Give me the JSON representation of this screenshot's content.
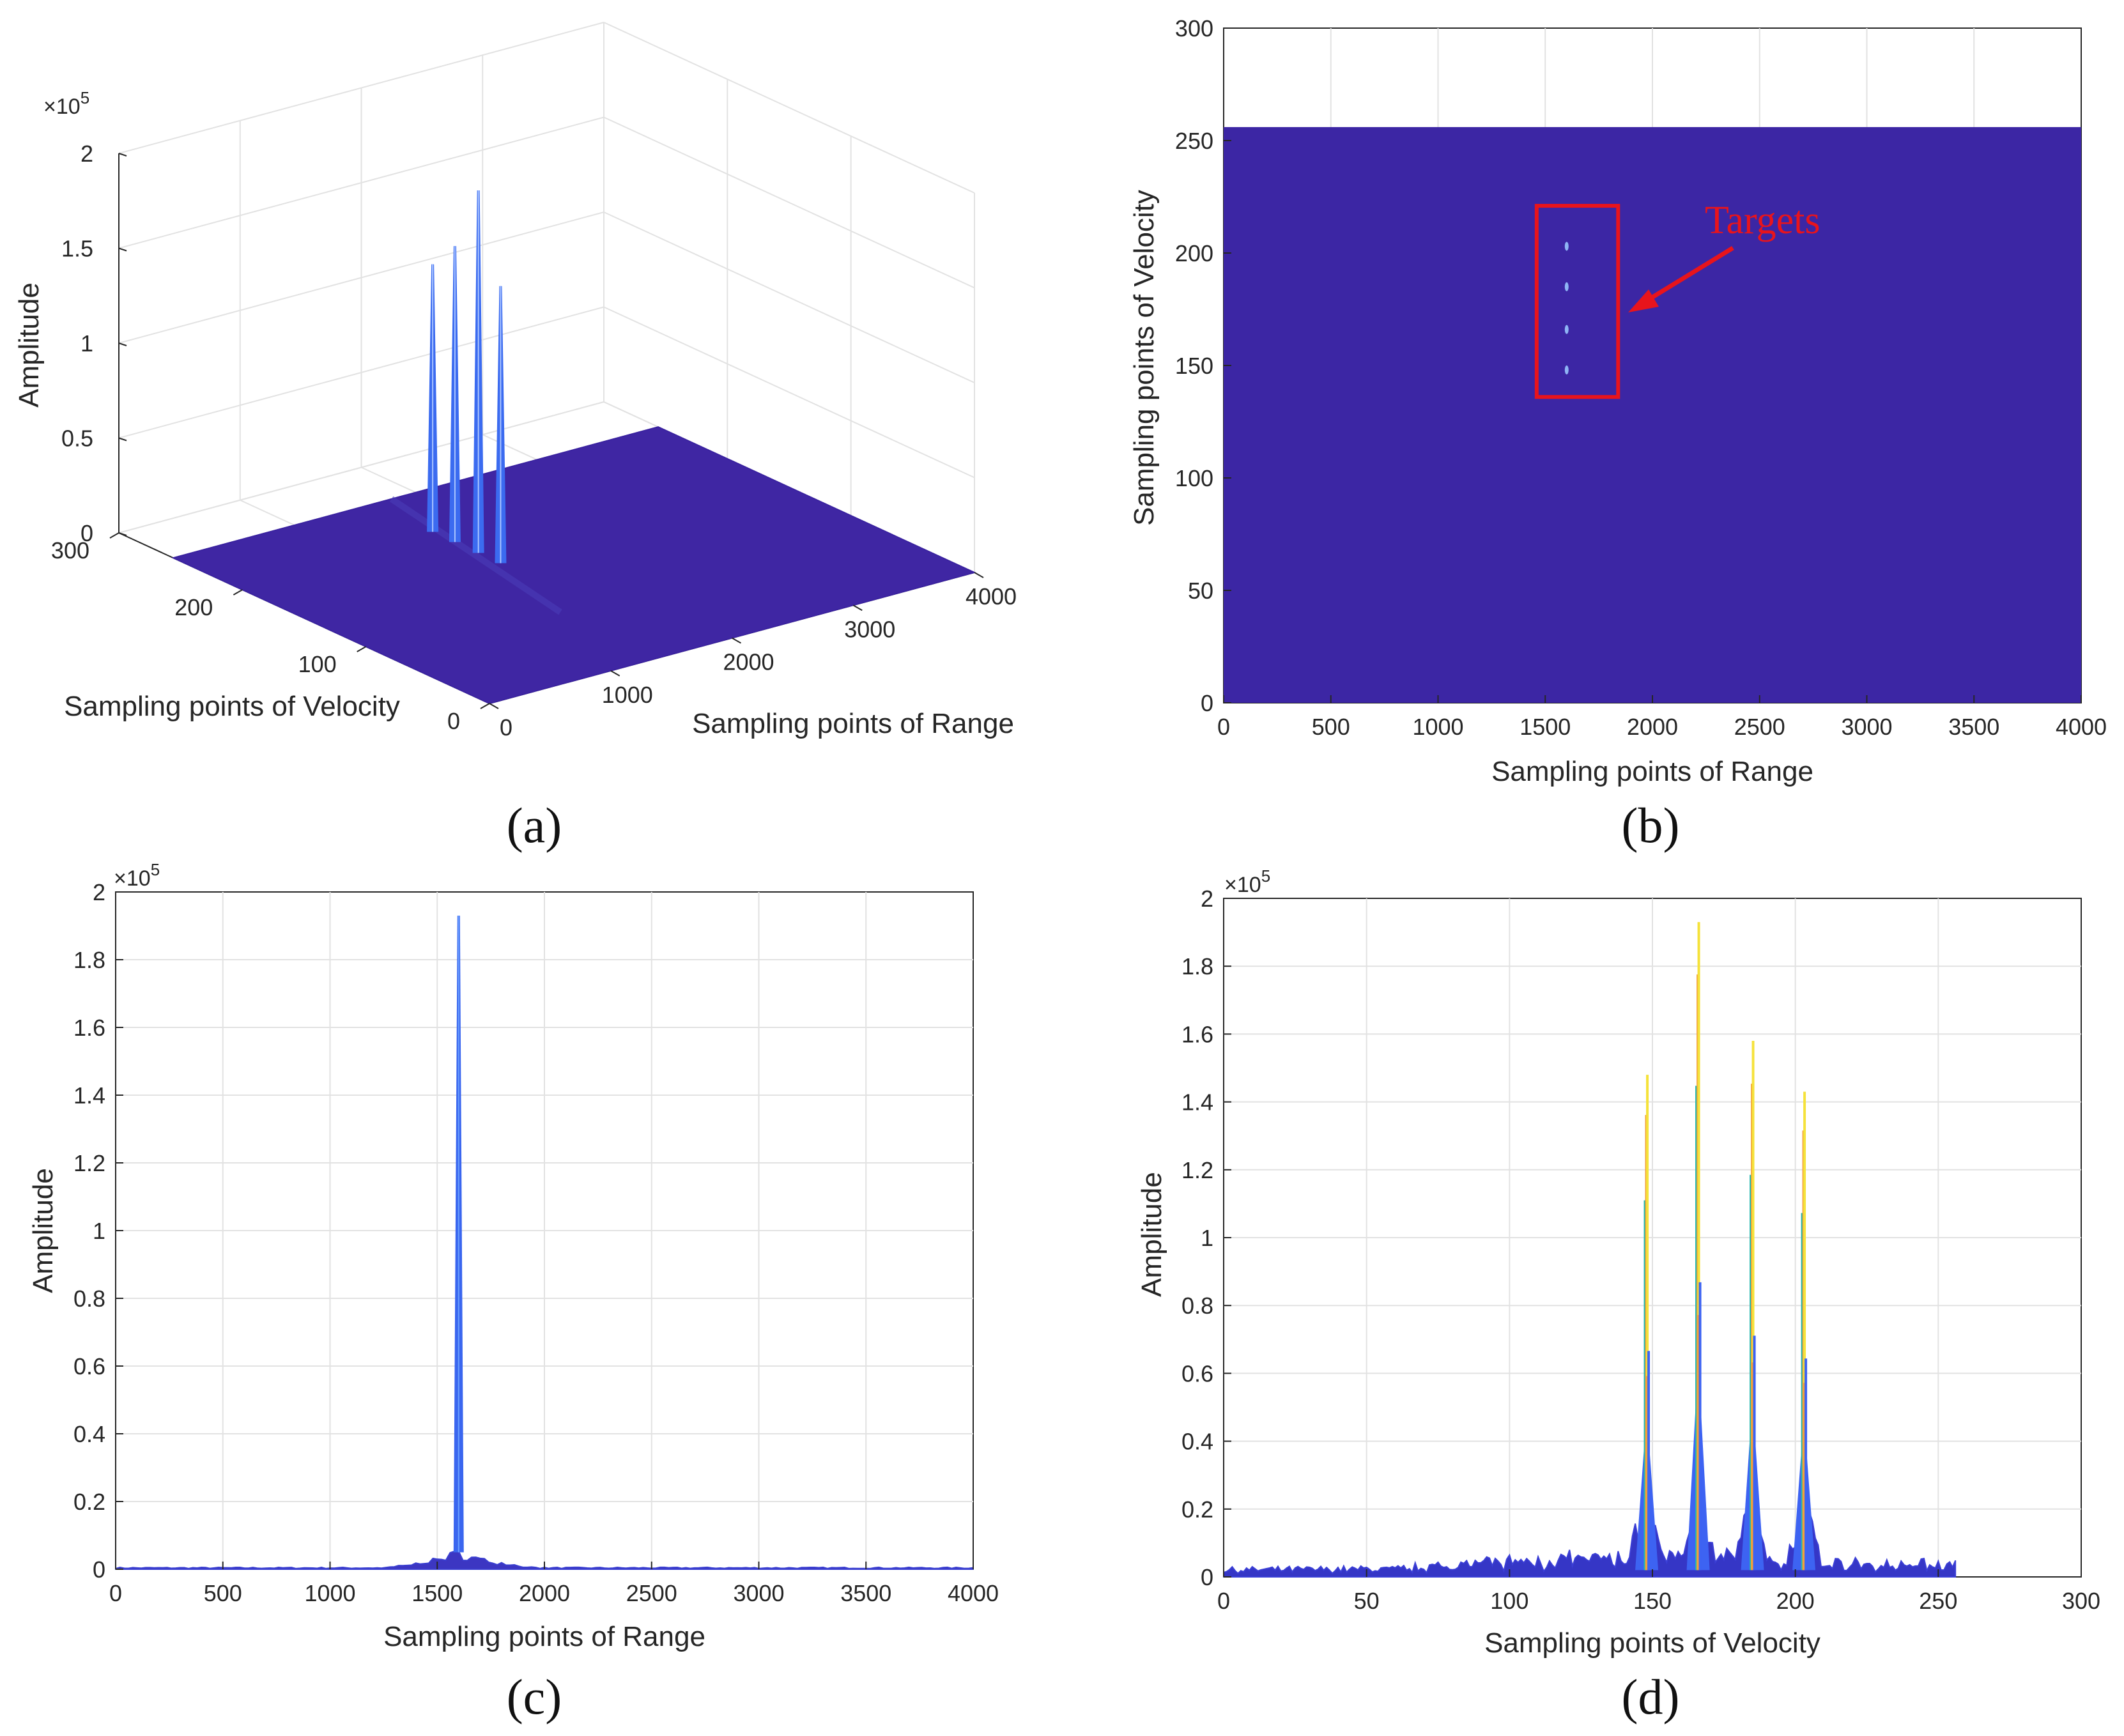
{
  "chart_data": [
    {
      "id": "a",
      "type": "surface3d",
      "caption": "(a)",
      "exponent": {
        "base": "×10",
        "power": "5"
      },
      "zlabel": "Amplitude",
      "ylabel": "Sampling points of Velocity",
      "xlabel": "Sampling points of Range",
      "zticks": [
        "0",
        "0.5",
        "1",
        "1.5",
        "2"
      ],
      "yticks": [
        "0",
        "100",
        "200",
        "300"
      ],
      "xticks": [
        "0",
        "1000",
        "2000",
        "3000",
        "4000"
      ],
      "xlim": [
        0,
        4000
      ],
      "ylim": [
        0,
        300
      ],
      "zlim": [
        0,
        2
      ],
      "peaks": [
        {
          "range": 1600,
          "velocity": 148,
          "amplitude": 1.48
        },
        {
          "range": 1600,
          "velocity": 166,
          "amplitude": 1.93
        },
        {
          "range": 1600,
          "velocity": 185,
          "amplitude": 1.58
        },
        {
          "range": 1600,
          "velocity": 203,
          "amplitude": 1.43
        }
      ],
      "surface_color": "#3f26a3",
      "peak_color": "#3b6bf0"
    },
    {
      "id": "b",
      "type": "heatmap",
      "caption": "(b)",
      "xlabel": "Sampling points of Range",
      "ylabel": "Sampling points of Velocity",
      "xticks": [
        "0",
        "500",
        "1000",
        "1500",
        "2000",
        "2500",
        "3000",
        "3500",
        "4000"
      ],
      "yticks": [
        "0",
        "50",
        "100",
        "150",
        "200",
        "250",
        "300"
      ],
      "xlim": [
        0,
        4000
      ],
      "ylim": [
        0,
        300
      ],
      "data_extent": {
        "x": [
          0,
          4000
        ],
        "y": [
          0,
          256
        ]
      },
      "fill_color": "#3c26a4",
      "annotation": "Targets",
      "annotation_color": "#e8141c",
      "box": {
        "x": [
          1460,
          1840
        ],
        "y": [
          136,
          221
        ]
      },
      "targets": [
        {
          "range": 1600,
          "velocity": 148
        },
        {
          "range": 1600,
          "velocity": 166
        },
        {
          "range": 1600,
          "velocity": 185
        },
        {
          "range": 1600,
          "velocity": 203
        }
      ]
    },
    {
      "id": "c",
      "type": "line",
      "caption": "(c)",
      "exponent": {
        "base": "×10",
        "power": "5"
      },
      "xlabel": "Sampling points of Range",
      "ylabel": "Amplitude",
      "xticks": [
        "0",
        "500",
        "1000",
        "1500",
        "2000",
        "2500",
        "3000",
        "3500",
        "4000"
      ],
      "yticks": [
        "0",
        "0.2",
        "0.4",
        "0.6",
        "0.8",
        "1",
        "1.2",
        "1.4",
        "1.6",
        "1.8",
        "2"
      ],
      "xlim": [
        0,
        4000
      ],
      "ylim": [
        0,
        2
      ],
      "peak": {
        "x": 1600,
        "y": 1.93
      },
      "base_lobe": {
        "x_from": 1220,
        "x_to": 1990,
        "height": 0.05
      },
      "line_color": "#3a4fdc"
    },
    {
      "id": "d",
      "type": "line",
      "caption": "(d)",
      "exponent": {
        "base": "×10",
        "power": "5"
      },
      "xlabel": "Sampling points of Velocity",
      "ylabel": "Amplitude",
      "xticks": [
        "0",
        "50",
        "100",
        "150",
        "200",
        "250",
        "300"
      ],
      "yticks": [
        "0",
        "0.2",
        "0.4",
        "0.6",
        "0.8",
        "1",
        "1.2",
        "1.4",
        "1.6",
        "1.8",
        "2"
      ],
      "xlim": [
        0,
        300
      ],
      "ylim": [
        0,
        2
      ],
      "x_extent": [
        0,
        256
      ],
      "peaks": [
        {
          "x": 148,
          "y": 1.48
        },
        {
          "x": 166,
          "y": 1.93
        },
        {
          "x": 185,
          "y": 1.58
        },
        {
          "x": 203,
          "y": 1.43
        }
      ],
      "line_colors": [
        "#3537c8",
        "#3d63f2",
        "#22b8b0",
        "#f2a03a",
        "#f5e23a"
      ]
    }
  ]
}
